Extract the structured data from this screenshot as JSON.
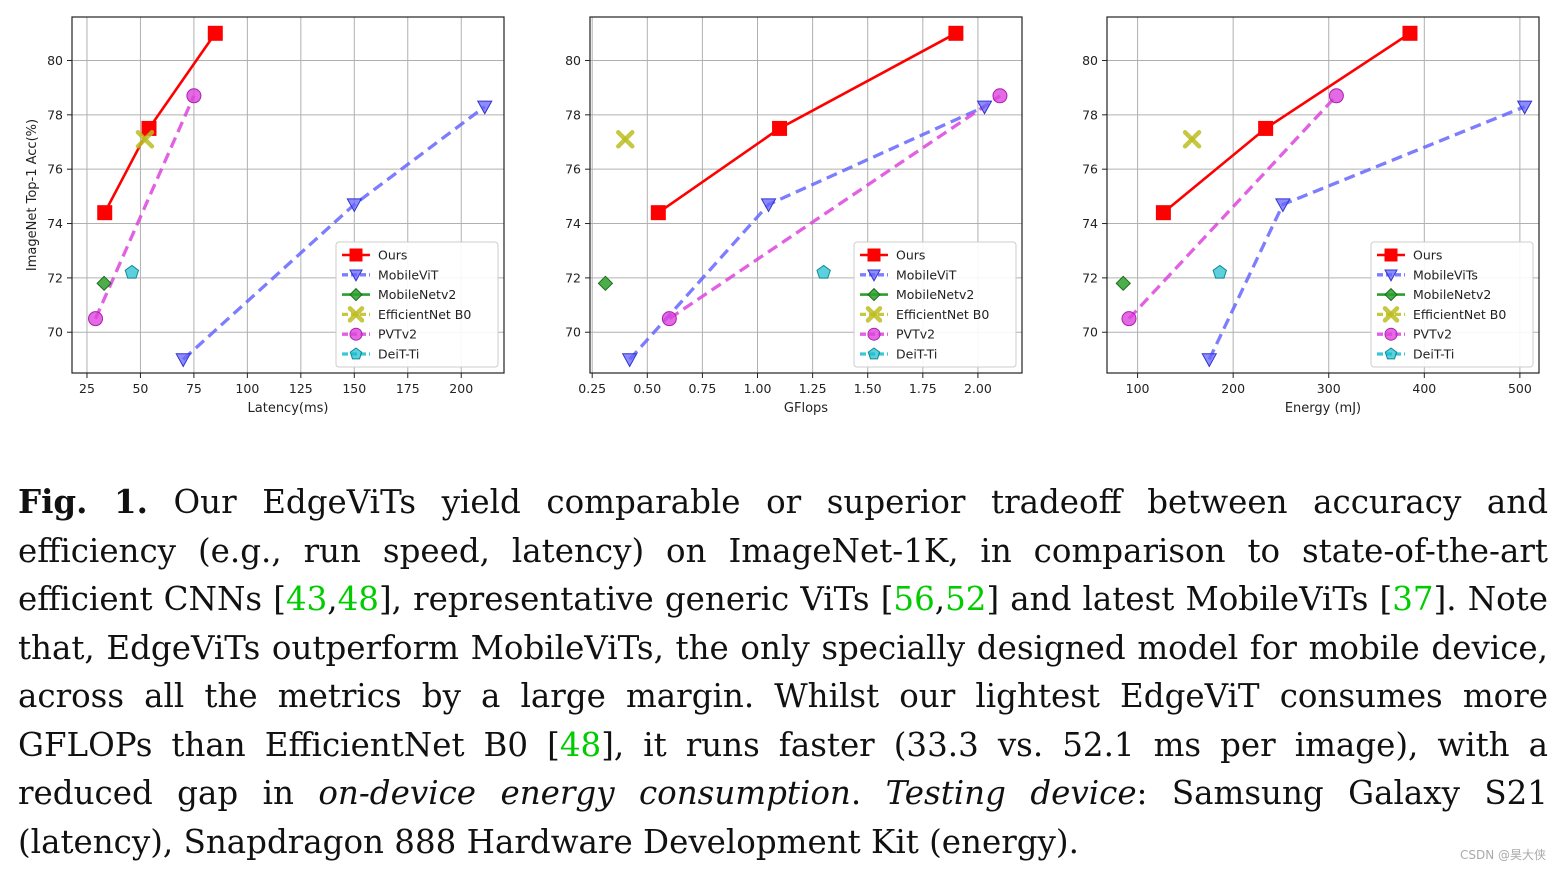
{
  "chart_data": [
    {
      "type": "line",
      "xlabel": "Latency(ms)",
      "ylabel": "ImageNet Top-1 Acc(%)",
      "xlim": [
        18,
        220
      ],
      "ylim": [
        68.5,
        81.6
      ],
      "xticks": [
        25,
        50,
        75,
        100,
        125,
        150,
        175,
        200
      ],
      "yticks": [
        70,
        72,
        74,
        76,
        78,
        80
      ],
      "legend_position": "lower-right",
      "series": [
        {
          "name": "Ours",
          "color": "#ff0000",
          "marker": "square",
          "dashed": false,
          "points": [
            [
              33.3,
              74.4
            ],
            [
              54,
              77.5
            ],
            [
              85,
              81.0
            ]
          ]
        },
        {
          "name": "MobileViT",
          "color": "#6666ff",
          "marker": "triangle-down",
          "dashed": true,
          "points": [
            [
              70,
              69.0
            ],
            [
              150,
              74.7
            ],
            [
              211,
              78.3
            ]
          ]
        },
        {
          "name": "MobileNetv2",
          "color": "#2ca02c",
          "marker": "diamond",
          "dashed": false,
          "points": [
            [
              33,
              71.8
            ]
          ]
        },
        {
          "name": "EfficientNet B0",
          "color": "#bcbd22",
          "marker": "x",
          "dashed": true,
          "points": [
            [
              52.1,
              77.1
            ]
          ]
        },
        {
          "name": "PVTv2",
          "color": "#dd44dd",
          "marker": "circle",
          "dashed": true,
          "points": [
            [
              29,
              70.5
            ],
            [
              75,
              78.7
            ]
          ]
        },
        {
          "name": "DeiT-Ti",
          "color": "#17becf",
          "marker": "pentagon",
          "dashed": true,
          "points": [
            [
              46,
              72.2
            ]
          ]
        }
      ]
    },
    {
      "type": "line",
      "xlabel": "GFlops",
      "ylabel": "",
      "xlim": [
        0.24,
        2.2
      ],
      "ylim": [
        68.5,
        81.6
      ],
      "xticks": [
        0.25,
        0.5,
        0.75,
        1.0,
        1.25,
        1.5,
        1.75,
        2.0
      ],
      "xticklabels": [
        "0.25",
        "0.50",
        "0.75",
        "1.00",
        "1.25",
        "1.50",
        "1.75",
        "2.00"
      ],
      "yticks": [
        70,
        72,
        74,
        76,
        78,
        80
      ],
      "legend_position": "lower-right",
      "series": [
        {
          "name": "Ours",
          "color": "#ff0000",
          "marker": "square",
          "dashed": false,
          "points": [
            [
              0.55,
              74.4
            ],
            [
              1.1,
              77.5
            ],
            [
              1.9,
              81.0
            ]
          ]
        },
        {
          "name": "MobileViT",
          "color": "#6666ff",
          "marker": "triangle-down",
          "dashed": true,
          "points": [
            [
              0.42,
              69.0
            ],
            [
              1.05,
              74.7
            ],
            [
              2.03,
              78.3
            ]
          ]
        },
        {
          "name": "MobileNetv2",
          "color": "#2ca02c",
          "marker": "diamond",
          "dashed": false,
          "points": [
            [
              0.31,
              71.8
            ]
          ]
        },
        {
          "name": "EfficientNet B0",
          "color": "#bcbd22",
          "marker": "x",
          "dashed": true,
          "points": [
            [
              0.4,
              77.1
            ]
          ]
        },
        {
          "name": "PVTv2",
          "color": "#dd44dd",
          "marker": "circle",
          "dashed": true,
          "points": [
            [
              0.6,
              70.5
            ],
            [
              2.1,
              78.7
            ]
          ]
        },
        {
          "name": "DeiT-Ti",
          "color": "#17becf",
          "marker": "pentagon",
          "dashed": true,
          "points": [
            [
              1.3,
              72.2
            ]
          ]
        }
      ]
    },
    {
      "type": "line",
      "xlabel": "Energy (mJ)",
      "ylabel": "",
      "xlim": [
        68,
        520
      ],
      "ylim": [
        68.5,
        81.6
      ],
      "xticks": [
        100,
        200,
        300,
        400,
        500
      ],
      "yticks": [
        70,
        72,
        74,
        76,
        78,
        80
      ],
      "legend_position": "lower-right",
      "series": [
        {
          "name": "Ours",
          "color": "#ff0000",
          "marker": "square",
          "dashed": false,
          "points": [
            [
              127,
              74.4
            ],
            [
              234,
              77.5
            ],
            [
              385,
              81.0
            ]
          ]
        },
        {
          "name": "MobileViTs",
          "color": "#6666ff",
          "marker": "triangle-down",
          "dashed": true,
          "points": [
            [
              175,
              69.0
            ],
            [
              252,
              74.7
            ],
            [
              505,
              78.3
            ]
          ]
        },
        {
          "name": "MobileNetv2",
          "color": "#2ca02c",
          "marker": "diamond",
          "dashed": false,
          "points": [
            [
              85,
              71.8
            ]
          ]
        },
        {
          "name": "EfficientNet B0",
          "color": "#bcbd22",
          "marker": "x",
          "dashed": true,
          "points": [
            [
              157,
              77.1
            ]
          ]
        },
        {
          "name": "PVTv2",
          "color": "#dd44dd",
          "marker": "circle",
          "dashed": true,
          "points": [
            [
              91,
              70.5
            ],
            [
              308,
              78.7
            ]
          ]
        },
        {
          "name": "DeiT-Ti",
          "color": "#17becf",
          "marker": "pentagon",
          "dashed": true,
          "points": [
            [
              186,
              72.2
            ]
          ]
        }
      ]
    }
  ],
  "caption": {
    "label": "Fig. 1.",
    "p1": " Our EdgeViTs yield comparable or superior tradeoff between accuracy and efficiency (e.g., run speed, latency) on ImageNet-1K, in comparison to state-of-the-art efficient CNNs [",
    "ref1": "43",
    "sep1": ",",
    "ref2": "48",
    "p2": "], representative generic ViTs [",
    "ref3": "56",
    "sep2": ",",
    "ref4": "52",
    "p3": "] and latest MobileViTs [",
    "ref5": "37",
    "p4": "]. Note that, EdgeViTs outperform MobileViTs, the only specially designed model for mobile device, across all the metrics by a large margin. Whilst our lightest EdgeViT consumes more GFLOPs than EfficientNet B0 [",
    "ref6": "48",
    "p5": "], it runs faster (33.3 vs. 52.1 ms per image), with a reduced gap in ",
    "italic1": "on-device energy consumption",
    "p6": ". ",
    "italic2": "Testing device",
    "p7": ": Samsung Galaxy S21 (latency), Snapdragon 888 Hardware Development Kit (energy)."
  },
  "watermark": "CSDN @昊大侠"
}
